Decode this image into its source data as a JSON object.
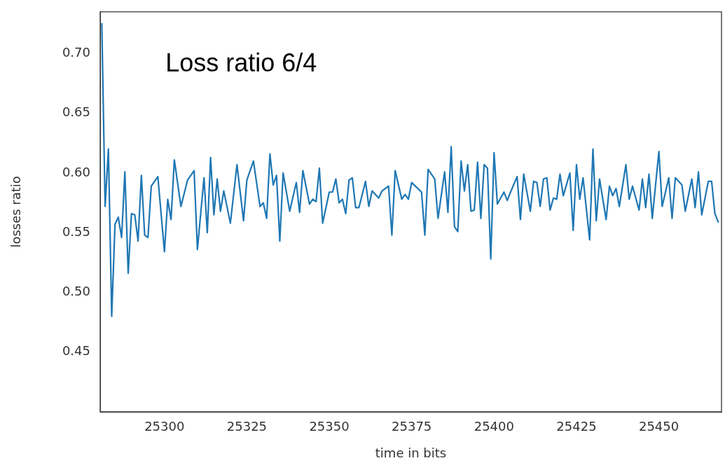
{
  "chart_data": {
    "type": "line",
    "xlabel": "time in bits",
    "ylabel": "losses ratio",
    "annotations": [
      "Loss ratio 6/4"
    ],
    "x": [
      25281,
      25282,
      25283,
      25284,
      25285,
      25286,
      25287,
      25288,
      25289,
      25290,
      25291,
      25292,
      25293,
      25294,
      25295,
      25296,
      25298,
      25300,
      25301,
      25302,
      25303,
      25305,
      25307,
      25309,
      25310,
      25312,
      25313,
      25314,
      25315,
      25316,
      25317,
      25318,
      25320,
      25322,
      25324,
      25325,
      25327,
      25329,
      25330,
      25331,
      25332,
      25333,
      25334,
      25335,
      25336,
      25338,
      25340,
      25341,
      25342,
      25344,
      25345,
      25346,
      25347,
      25348,
      25350,
      25351,
      25352,
      25353,
      25354,
      25355,
      25356,
      25357,
      25358,
      25359,
      25361,
      25362,
      25363,
      25365,
      25366,
      25368,
      25369,
      25370,
      25372,
      25373,
      25374,
      25375,
      25378,
      25379,
      25380,
      25382,
      25383,
      25385,
      25386,
      25387,
      25388,
      25389,
      25390,
      25391,
      25392,
      25393,
      25394,
      25395,
      25396,
      25397,
      25398,
      25399,
      25400,
      25401,
      25403,
      25404,
      25405,
      25407,
      25408,
      25409,
      25411,
      25412,
      25413,
      25414,
      25415,
      25416,
      25417,
      25418,
      25419,
      25420,
      25421,
      25423,
      25424,
      25425,
      25426,
      25427,
      25429,
      25430,
      25431,
      25432,
      25434,
      25435,
      25436,
      25437,
      25438,
      25440,
      25441,
      25442,
      25444,
      25445,
      25446,
      25447,
      25448,
      25450,
      25451,
      25453,
      25454,
      25455,
      25457,
      25458,
      25460,
      25461,
      25462,
      25463,
      25465,
      25466,
      25467,
      25468
    ],
    "series": [
      {
        "color": "#1f77b4",
        "values": [
          0.725,
          0.572,
          0.62,
          0.48,
          0.557,
          0.563,
          0.546,
          0.601,
          0.516,
          0.566,
          0.565,
          0.543,
          0.598,
          0.548,
          0.546,
          0.589,
          0.597,
          0.534,
          0.578,
          0.561,
          0.611,
          0.572,
          0.594,
          0.602,
          0.536,
          0.596,
          0.55,
          0.613,
          0.565,
          0.595,
          0.568,
          0.585,
          0.558,
          0.607,
          0.56,
          0.594,
          0.61,
          0.572,
          0.575,
          0.562,
          0.616,
          0.59,
          0.598,
          0.543,
          0.6,
          0.568,
          0.592,
          0.567,
          0.602,
          0.574,
          0.578,
          0.576,
          0.604,
          0.558,
          0.584,
          0.584,
          0.595,
          0.575,
          0.578,
          0.566,
          0.594,
          0.596,
          0.571,
          0.571,
          0.593,
          0.572,
          0.585,
          0.579,
          0.585,
          0.589,
          0.548,
          0.602,
          0.578,
          0.582,
          0.578,
          0.592,
          0.584,
          0.548,
          0.603,
          0.595,
          0.562,
          0.601,
          0.567,
          0.622,
          0.555,
          0.551,
          0.61,
          0.585,
          0.607,
          0.568,
          0.569,
          0.609,
          0.562,
          0.607,
          0.604,
          0.528,
          0.617,
          0.574,
          0.584,
          0.577,
          0.584,
          0.597,
          0.561,
          0.599,
          0.568,
          0.593,
          0.592,
          0.572,
          0.595,
          0.596,
          0.569,
          0.579,
          0.578,
          0.599,
          0.581,
          0.6,
          0.552,
          0.607,
          0.578,
          0.596,
          0.544,
          0.62,
          0.56,
          0.595,
          0.561,
          0.589,
          0.581,
          0.587,
          0.572,
          0.607,
          0.578,
          0.589,
          0.569,
          0.595,
          0.571,
          0.599,
          0.562,
          0.618,
          0.572,
          0.596,
          0.562,
          0.596,
          0.59,
          0.568,
          0.595,
          0.571,
          0.601,
          0.565,
          0.593,
          0.593,
          0.566,
          0.559
        ]
      }
    ],
    "xlim": [
      25280.5,
      25469
    ],
    "xticks": [
      25300,
      25325,
      25350,
      25375,
      25400,
      25425,
      25450
    ],
    "ylim": [
      0.4,
      0.735
    ],
    "yticks": [
      {
        "value": 0.45,
        "label": "0.45"
      },
      {
        "value": 0.5,
        "label": "0.50"
      },
      {
        "value": 0.55,
        "label": "0.55"
      },
      {
        "value": 0.6,
        "label": "0.60"
      },
      {
        "value": 0.65,
        "label": "0.65"
      },
      {
        "value": 0.7,
        "label": "0.70"
      }
    ],
    "grid": false,
    "legend": false,
    "marker": "none",
    "line_style": "solid"
  }
}
